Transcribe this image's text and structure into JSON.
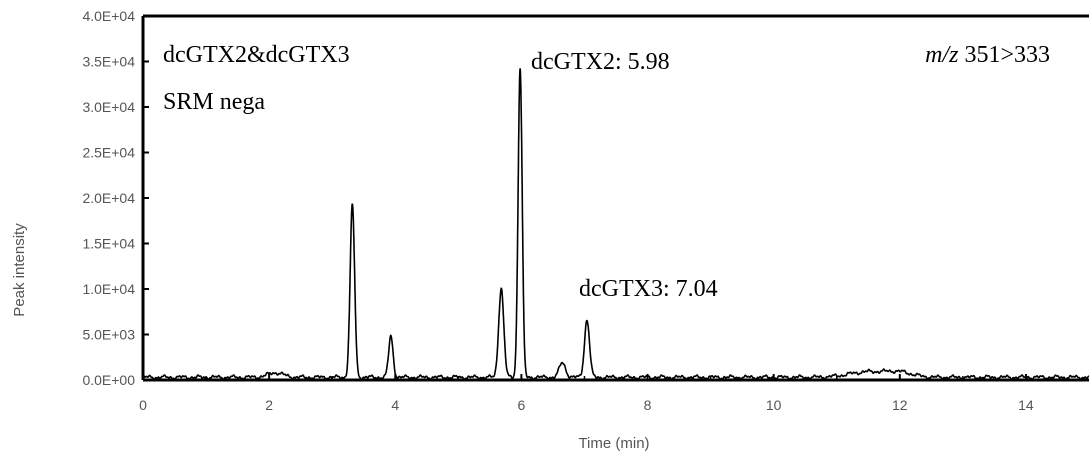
{
  "chart_data": {
    "type": "line",
    "title": "",
    "xlabel": "Time (min)",
    "ylabel": "Peak intensity",
    "xlim": [
      0,
      15
    ],
    "ylim": [
      0,
      40000
    ],
    "x_ticks": [
      0,
      2,
      4,
      6,
      8,
      10,
      12,
      14
    ],
    "x_tick_labels": [
      "0",
      "2",
      "4",
      "6",
      "8",
      "10",
      "12",
      "14"
    ],
    "y_ticks": [
      0,
      5000,
      10000,
      15000,
      20000,
      25000,
      30000,
      35000,
      40000
    ],
    "y_tick_labels": [
      "0.0E+00",
      "5.0E+03",
      "1.0E+04",
      "1.5E+04",
      "2.0E+04",
      "2.5E+04",
      "3.0E+04",
      "3.5E+04",
      "4.0E+04"
    ],
    "grid": false,
    "baseline": 300,
    "peaks": [
      {
        "rt": 2.1,
        "height": 500,
        "width": 0.12
      },
      {
        "rt": 3.32,
        "height": 19000,
        "width": 0.035
      },
      {
        "rt": 3.93,
        "height": 4500,
        "width": 0.035
      },
      {
        "rt": 5.68,
        "height": 9800,
        "width": 0.04
      },
      {
        "rt": 5.98,
        "height": 34000,
        "width": 0.032
      },
      {
        "rt": 6.65,
        "height": 1600,
        "width": 0.05
      },
      {
        "rt": 7.04,
        "height": 6300,
        "width": 0.04
      },
      {
        "rt": 11.5,
        "height": 600,
        "width": 0.3
      },
      {
        "rt": 12.0,
        "height": 500,
        "width": 0.2
      }
    ],
    "annotations": {
      "sample": "dcGTX2&dcGTX3",
      "mode": "SRM nega",
      "peak1": "dcGTX2: 5.98",
      "peak2": "dcGTX3: 7.04",
      "transition_prefix": "m/z",
      "transition_value": "351>333"
    },
    "color": "#000000"
  }
}
